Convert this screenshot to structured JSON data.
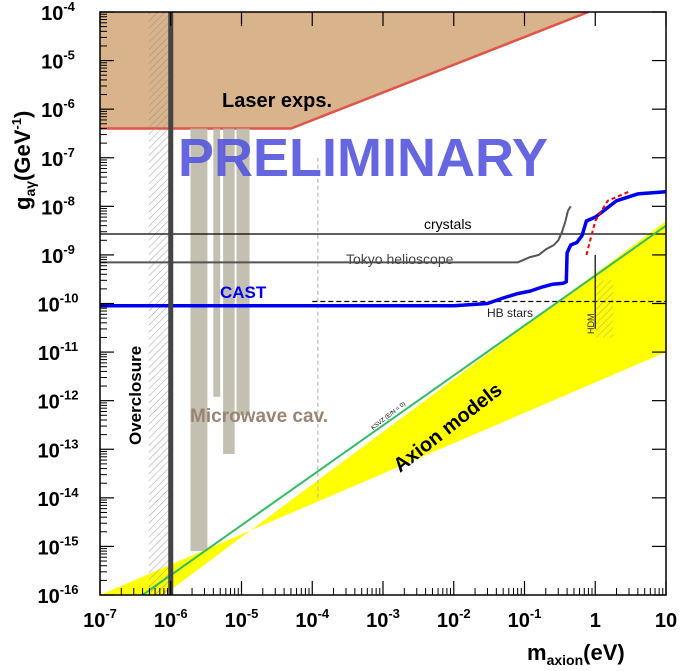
{
  "chart_data": {
    "type": "line",
    "title": "",
    "watermark": "PRELIMINARY",
    "xlabel": {
      "base": "m",
      "sub": "axion",
      "unit": "(eV)"
    },
    "ylabel": {
      "base": "g",
      "sub": "aγ",
      "unit": "(GeV",
      "sup": "-1",
      "close": ")"
    },
    "x_scale": "log",
    "y_scale": "log",
    "xlim": [
      1e-07,
      10
    ],
    "ylim": [
      1e-16,
      0.0001
    ],
    "x_ticks": [
      {
        "base": "10",
        "exp": "-7",
        "v": 1e-07
      },
      {
        "base": "10",
        "exp": "-6",
        "v": 1e-06
      },
      {
        "base": "10",
        "exp": "-5",
        "v": 1e-05
      },
      {
        "base": "10",
        "exp": "-4",
        "v": 0.0001
      },
      {
        "base": "10",
        "exp": "-3",
        "v": 0.001
      },
      {
        "base": "10",
        "exp": "-2",
        "v": 0.01
      },
      {
        "base": "10",
        "exp": "-1",
        "v": 0.1
      },
      {
        "base": "1",
        "exp": "",
        "v": 1
      },
      {
        "base": "10",
        "exp": "",
        "v": 10
      }
    ],
    "y_ticks": [
      {
        "base": "10",
        "exp": "-4",
        "v": 0.0001
      },
      {
        "base": "10",
        "exp": "-5",
        "v": 1e-05
      },
      {
        "base": "10",
        "exp": "-6",
        "v": 1e-06
      },
      {
        "base": "10",
        "exp": "-7",
        "v": 1e-07
      },
      {
        "base": "10",
        "exp": "-8",
        "v": 1e-08
      },
      {
        "base": "10",
        "exp": "-9",
        "v": 1e-09
      },
      {
        "base": "10",
        "exp": "-10",
        "v": 1e-10
      },
      {
        "base": "10",
        "exp": "-11",
        "v": 1e-11
      },
      {
        "base": "10",
        "exp": "-12",
        "v": 1e-12
      },
      {
        "base": "10",
        "exp": "-13",
        "v": 1e-13
      },
      {
        "base": "10",
        "exp": "-14",
        "v": 1e-14
      },
      {
        "base": "10",
        "exp": "-15",
        "v": 1e-15
      },
      {
        "base": "10",
        "exp": "-16",
        "v": 1e-16
      }
    ],
    "colors": {
      "cast": "#0000ee",
      "laser_fill": "#d9b38c",
      "laser_edge": "#e0554a",
      "axion_band": "#ffff00",
      "ksvz": "#33bb66",
      "microwave": "#bdb8a8",
      "microwave_label": "#9a8575",
      "tokyo": "#555555",
      "watermark": "#5555dd",
      "red": "#ee0000"
    },
    "regions": {
      "laser": {
        "label": "Laser exps.",
        "x": [
          1e-07,
          1e-07,
          5e-05,
          0.8,
          10,
          10
        ],
        "y": [
          0.0001,
          4e-07,
          4e-07,
          0.0001,
          0.0001,
          0.0001
        ]
      },
      "axion_models": {
        "label": "Axion models",
        "x": [
          1e-07,
          8e-07,
          10,
          10
        ],
        "y": [
          1e-16,
          1e-16,
          5e-09,
          1e-11
        ]
      },
      "microwave": {
        "label": "Microwave cav.",
        "bars": [
          {
            "x0": 1.9e-06,
            "x1": 3.3e-06,
            "y": 8e-16
          },
          {
            "x0": 4e-06,
            "x1": 5e-06,
            "y": 1.2e-12
          },
          {
            "x0": 5.5e-06,
            "x1": 8e-06,
            "y": 8e-14
          },
          {
            "x0": 8.5e-06,
            "x1": 1.3e-05,
            "y": 5e-13
          }
        ],
        "top": 4e-07
      }
    },
    "series": [
      {
        "name": "CAST",
        "x": [
          1e-07,
          1e-06,
          0.0001,
          0.001,
          0.01,
          0.03,
          0.05,
          0.08,
          0.12,
          0.18,
          0.25,
          0.35,
          0.39,
          0.4,
          0.45,
          0.55,
          0.65,
          0.75,
          1.0,
          1.3,
          2.0,
          4.0,
          10
        ],
        "y": [
          9e-11,
          9e-11,
          9e-11,
          9e-11,
          9e-11,
          1e-10,
          1.3e-10,
          1.6e-10,
          1.8e-10,
          2.2e-10,
          2.5e-10,
          2.6e-10,
          2.8e-10,
          1.1e-09,
          1.6e-09,
          1.8e-09,
          2.5e-09,
          5e-09,
          6e-09,
          8e-09,
          1.3e-08,
          1.8e-08,
          2e-08
        ]
      },
      {
        "name": "Tokyo helioscope",
        "x": [
          1e-07,
          0.08,
          0.12,
          0.16,
          0.2,
          0.26,
          0.3,
          0.34,
          0.38,
          0.41,
          0.45
        ],
        "y": [
          7e-10,
          7e-10,
          9e-10,
          1e-09,
          1.3e-09,
          1.6e-09,
          2e-09,
          3e-09,
          5e-09,
          8e-09,
          1e-08
        ]
      },
      {
        "name": "crystals",
        "x": [
          1e-07,
          10
        ],
        "y": [
          2.7e-09,
          2.7e-09
        ]
      },
      {
        "name": "HB stars",
        "x": [
          0.0001,
          10
        ],
        "y": [
          1.1e-10,
          1.1e-10
        ]
      },
      {
        "name": "KSVZ (E/N = 0)",
        "x": [
          4e-07,
          10
        ],
        "y": [
          1e-16,
          4e-09
        ]
      }
    ],
    "labels": {
      "crystals": "crystals",
      "tokyo": "Tokyo helioscope",
      "cast": "CAST",
      "hb": "HB stars",
      "hdm": "HDM",
      "overclosure": "Overclosure",
      "microwave": "Microwave cav.",
      "axion_models": "Axion models",
      "ksvz": "KSVZ (E/N = 0)",
      "laser": "Laser exps."
    },
    "vertical_lines": {
      "overclosure_x": 1e-06,
      "hdm_x": 1.0,
      "dashed_x": 0.00012
    },
    "grid": false
  }
}
